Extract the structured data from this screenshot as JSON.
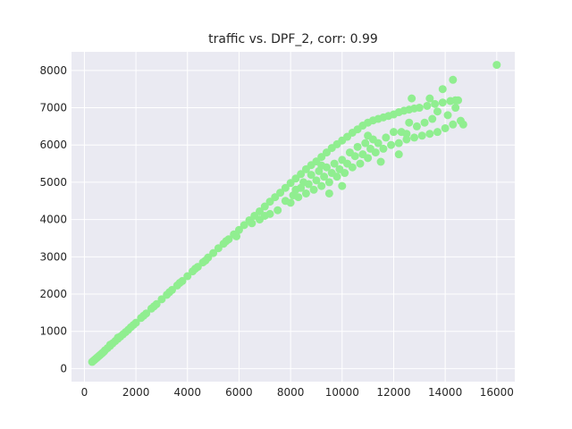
{
  "chart_data": {
    "type": "scatter",
    "title": "traffic vs. DPF_2, corr: 0.99",
    "xlabel": "",
    "ylabel": "",
    "xlim": [
      -500,
      16700
    ],
    "ylim": [
      -350,
      8500
    ],
    "x_ticks": [
      0,
      2000,
      4000,
      6000,
      8000,
      10000,
      12000,
      14000,
      16000
    ],
    "y_ticks": [
      0,
      1000,
      2000,
      3000,
      4000,
      5000,
      6000,
      7000,
      8000
    ],
    "grid": true,
    "legend": "none",
    "series": [
      {
        "color": "#90ee90",
        "points": [
          [
            300,
            180
          ],
          [
            350,
            210
          ],
          [
            400,
            240
          ],
          [
            450,
            270
          ],
          [
            500,
            300
          ],
          [
            550,
            330
          ],
          [
            600,
            360
          ],
          [
            650,
            390
          ],
          [
            700,
            420
          ],
          [
            750,
            450
          ],
          [
            800,
            490
          ],
          [
            900,
            550
          ],
          [
            1000,
            610
          ],
          [
            1100,
            680
          ],
          [
            1200,
            740
          ],
          [
            1300,
            800
          ],
          [
            1400,
            860
          ],
          [
            1500,
            920
          ],
          [
            1600,
            980
          ],
          [
            1700,
            1040
          ],
          [
            1800,
            1110
          ],
          [
            1900,
            1170
          ],
          [
            2000,
            1230
          ],
          [
            2200,
            1360
          ],
          [
            2400,
            1480
          ],
          [
            2600,
            1610
          ],
          [
            2800,
            1730
          ],
          [
            3000,
            1860
          ],
          [
            3200,
            1980
          ],
          [
            3400,
            2110
          ],
          [
            3600,
            2230
          ],
          [
            3800,
            2350
          ],
          [
            4000,
            2480
          ],
          [
            4200,
            2610
          ],
          [
            4400,
            2730
          ],
          [
            4600,
            2850
          ],
          [
            4800,
            2980
          ],
          [
            5000,
            3100
          ],
          [
            5200,
            3230
          ],
          [
            5400,
            3350
          ],
          [
            5600,
            3470
          ],
          [
            5800,
            3600
          ],
          [
            6000,
            3720
          ],
          [
            6200,
            3850
          ],
          [
            6400,
            3980
          ],
          [
            6600,
            4100
          ],
          [
            6800,
            4220
          ],
          [
            7000,
            4350
          ],
          [
            7200,
            4480
          ],
          [
            7400,
            4600
          ],
          [
            7600,
            4720
          ],
          [
            7800,
            4850
          ],
          [
            8000,
            4980
          ],
          [
            8200,
            5100
          ],
          [
            8400,
            5220
          ],
          [
            8600,
            5350
          ],
          [
            8800,
            5460
          ],
          [
            9000,
            5560
          ],
          [
            9200,
            5680
          ],
          [
            9400,
            5800
          ],
          [
            9600,
            5920
          ],
          [
            9800,
            6020
          ],
          [
            10000,
            6120
          ],
          [
            10200,
            6220
          ],
          [
            10400,
            6330
          ],
          [
            10600,
            6420
          ],
          [
            10800,
            6520
          ],
          [
            11000,
            6600
          ],
          [
            11200,
            6660
          ],
          [
            11400,
            6700
          ],
          [
            11600,
            6740
          ],
          [
            11800,
            6780
          ],
          [
            12000,
            6820
          ],
          [
            12200,
            6880
          ],
          [
            12400,
            6920
          ],
          [
            12600,
            6950
          ],
          [
            12800,
            6980
          ],
          [
            13000,
            7000
          ],
          [
            13300,
            7050
          ],
          [
            13600,
            7100
          ],
          [
            13900,
            7140
          ],
          [
            14200,
            7180
          ],
          [
            14500,
            7200
          ],
          [
            6500,
            3900
          ],
          [
            7000,
            4100
          ],
          [
            7500,
            4250
          ],
          [
            8000,
            4450
          ],
          [
            8300,
            4600
          ],
          [
            8600,
            4700
          ],
          [
            8900,
            4800
          ],
          [
            9200,
            4900
          ],
          [
            9500,
            5000
          ],
          [
            9800,
            5150
          ],
          [
            10100,
            5250
          ],
          [
            10400,
            5400
          ],
          [
            10700,
            5500
          ],
          [
            11000,
            5650
          ],
          [
            11300,
            5800
          ],
          [
            11600,
            5900
          ],
          [
            11900,
            6000
          ],
          [
            12200,
            6050
          ],
          [
            12500,
            6150
          ],
          [
            12800,
            6200
          ],
          [
            13100,
            6250
          ],
          [
            13400,
            6300
          ],
          [
            13700,
            6350
          ],
          [
            14000,
            6450
          ],
          [
            14300,
            6550
          ],
          [
            14600,
            6650
          ],
          [
            8500,
            5000
          ],
          [
            8800,
            5200
          ],
          [
            9100,
            5300
          ],
          [
            9400,
            5400
          ],
          [
            9700,
            5500
          ],
          [
            10000,
            5600
          ],
          [
            10300,
            5800
          ],
          [
            10600,
            5950
          ],
          [
            10900,
            6050
          ],
          [
            11200,
            6150
          ],
          [
            8200,
            4800
          ],
          [
            8700,
            4950
          ],
          [
            9300,
            5150
          ],
          [
            9900,
            5350
          ],
          [
            10500,
            5700
          ],
          [
            11100,
            5900
          ],
          [
            11700,
            6200
          ],
          [
            12300,
            6350
          ],
          [
            12900,
            6500
          ],
          [
            13500,
            6700
          ],
          [
            7800,
            4500
          ],
          [
            8100,
            4650
          ],
          [
            8400,
            4850
          ],
          [
            9000,
            5050
          ],
          [
            9600,
            5250
          ],
          [
            10200,
            5500
          ],
          [
            10800,
            5750
          ],
          [
            11400,
            6050
          ],
          [
            12000,
            6350
          ],
          [
            12600,
            6600
          ],
          [
            11500,
            5550
          ],
          [
            12200,
            5750
          ],
          [
            12500,
            6300
          ],
          [
            13200,
            6600
          ],
          [
            13700,
            6900
          ],
          [
            14100,
            6800
          ],
          [
            14400,
            7000
          ],
          [
            14700,
            6550
          ],
          [
            12700,
            7250
          ],
          [
            13400,
            7250
          ],
          [
            13900,
            7500
          ],
          [
            14300,
            7750
          ],
          [
            14400,
            7200
          ],
          [
            16000,
            8150
          ],
          [
            9500,
            4700
          ],
          [
            10000,
            4900
          ],
          [
            11000,
            6250
          ],
          [
            9200,
            5450
          ],
          [
            7200,
            4150
          ],
          [
            6800,
            4000
          ],
          [
            5500,
            3420
          ],
          [
            5900,
            3550
          ],
          [
            4700,
            2900
          ],
          [
            4300,
            2680
          ],
          [
            3700,
            2300
          ],
          [
            3300,
            2050
          ],
          [
            2700,
            1670
          ],
          [
            2300,
            1420
          ],
          [
            1300,
            830
          ],
          [
            1000,
            640
          ]
        ]
      }
    ]
  }
}
